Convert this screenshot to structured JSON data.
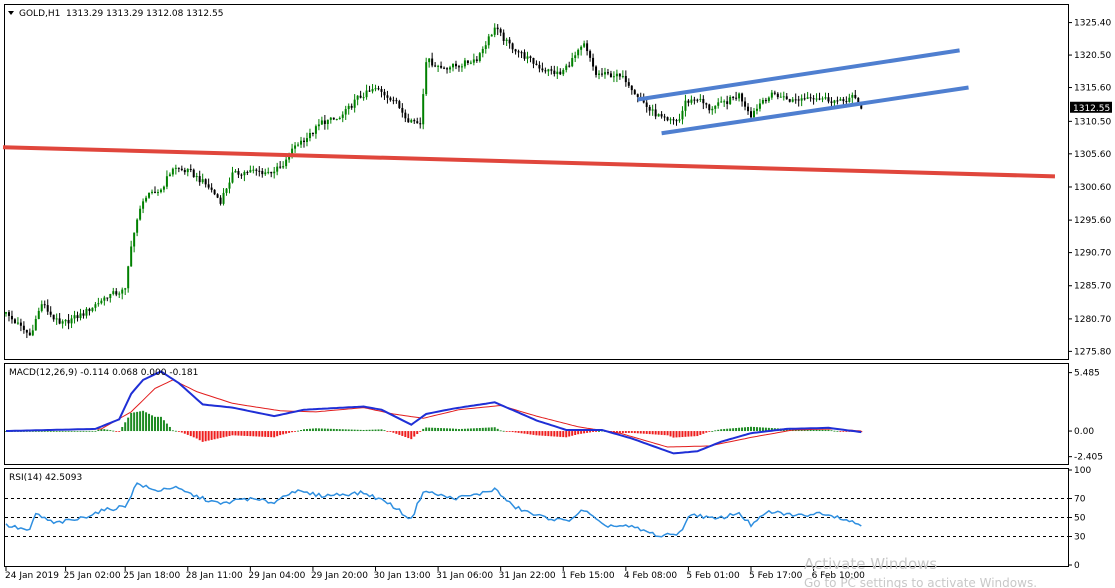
{
  "header": {
    "symbol": "GOLD,H1",
    "ohlc": "1313.29 1313.29 1312.08 1312.55"
  },
  "colors": {
    "bull": "#008000",
    "bear": "#000000",
    "support_line": "#e0463c",
    "channel": "#4f7fd0",
    "macd_main": "#1f2fd6",
    "macd_signal": "#e21c1c",
    "hist_pos": "#1f8b24",
    "hist_neg": "#ee1e1e",
    "rsi_line": "#2f8fe0",
    "current_price_box": "#000000"
  },
  "watermark": {
    "line1": "Activate Windows",
    "line2": "Go to PC settings to activate Windows."
  },
  "chart_data": [
    {
      "type": "candlestick",
      "title": "GOLD,H1",
      "ylim": [
        1274.8,
        1327.9
      ],
      "yticks": [
        "1325.40",
        "1320.50",
        "1315.60",
        "1310.50",
        "1305.60",
        "1300.60",
        "1295.60",
        "1290.70",
        "1285.70",
        "1280.70",
        "1275.80"
      ],
      "current_price": "1312.55",
      "path_points": [
        {
          "i": 0,
          "p": 1281.5
        },
        {
          "i": 8,
          "p": 1278.2
        },
        {
          "i": 12,
          "p": 1283.0
        },
        {
          "i": 18,
          "p": 1279.8
        },
        {
          "i": 26,
          "p": 1281.5
        },
        {
          "i": 34,
          "p": 1284.2
        },
        {
          "i": 40,
          "p": 1285.0
        },
        {
          "i": 42,
          "p": 1292.0
        },
        {
          "i": 46,
          "p": 1298.8
        },
        {
          "i": 52,
          "p": 1300.2
        },
        {
          "i": 56,
          "p": 1303.5
        },
        {
          "i": 62,
          "p": 1302.8
        },
        {
          "i": 68,
          "p": 1300.6
        },
        {
          "i": 72,
          "p": 1298.5
        },
        {
          "i": 76,
          "p": 1302.5
        },
        {
          "i": 82,
          "p": 1303.0
        },
        {
          "i": 88,
          "p": 1302.8
        },
        {
          "i": 93,
          "p": 1303.6
        },
        {
          "i": 97,
          "p": 1306.9
        },
        {
          "i": 102,
          "p": 1308.4
        },
        {
          "i": 106,
          "p": 1310.4
        },
        {
          "i": 112,
          "p": 1310.9
        },
        {
          "i": 118,
          "p": 1314.0
        },
        {
          "i": 124,
          "p": 1315.4
        },
        {
          "i": 130,
          "p": 1313.8
        },
        {
          "i": 135,
          "p": 1310.8
        },
        {
          "i": 139,
          "p": 1310.2
        },
        {
          "i": 141,
          "p": 1319.8
        },
        {
          "i": 146,
          "p": 1318.6
        },
        {
          "i": 152,
          "p": 1318.9
        },
        {
          "i": 158,
          "p": 1320.0
        },
        {
          "i": 164,
          "p": 1324.6
        },
        {
          "i": 168,
          "p": 1322.4
        },
        {
          "i": 174,
          "p": 1320.3
        },
        {
          "i": 180,
          "p": 1318.4
        },
        {
          "i": 186,
          "p": 1317.6
        },
        {
          "i": 190,
          "p": 1319.8
        },
        {
          "i": 194,
          "p": 1322.0
        },
        {
          "i": 198,
          "p": 1317.6
        },
        {
          "i": 204,
          "p": 1317.5
        },
        {
          "i": 208,
          "p": 1316.8
        },
        {
          "i": 212,
          "p": 1314.4
        },
        {
          "i": 216,
          "p": 1312.2
        },
        {
          "i": 222,
          "p": 1310.4
        },
        {
          "i": 226,
          "p": 1310.8
        },
        {
          "i": 228,
          "p": 1313.4
        },
        {
          "i": 232,
          "p": 1314.0
        },
        {
          "i": 236,
          "p": 1312.4
        },
        {
          "i": 242,
          "p": 1313.5
        },
        {
          "i": 246,
          "p": 1314.5
        },
        {
          "i": 250,
          "p": 1311.5
        },
        {
          "i": 254,
          "p": 1313.8
        },
        {
          "i": 258,
          "p": 1314.6
        },
        {
          "i": 264,
          "p": 1313.6
        },
        {
          "i": 270,
          "p": 1314.3
        },
        {
          "i": 276,
          "p": 1313.8
        },
        {
          "i": 280,
          "p": 1313.4
        },
        {
          "i": 284,
          "p": 1314.2
        },
        {
          "i": 287,
          "p": 1312.6
        }
      ]
    },
    {
      "type": "line",
      "title": "MACD(12,26,9) -0.114 0.068 0.000 -0.181",
      "ylim": [
        -3.0,
        6.2
      ],
      "yticks": [
        "5.485",
        "0.00",
        "-2.405"
      ],
      "main_points": [
        {
          "i": 0,
          "v": 0.0
        },
        {
          "i": 30,
          "v": 0.2
        },
        {
          "i": 38,
          "v": 1.1
        },
        {
          "i": 42,
          "v": 3.5
        },
        {
          "i": 46,
          "v": 4.8
        },
        {
          "i": 52,
          "v": 5.6
        },
        {
          "i": 58,
          "v": 4.5
        },
        {
          "i": 66,
          "v": 2.5
        },
        {
          "i": 76,
          "v": 2.2
        },
        {
          "i": 90,
          "v": 1.4
        },
        {
          "i": 100,
          "v": 2.0
        },
        {
          "i": 120,
          "v": 2.3
        },
        {
          "i": 126,
          "v": 2.0
        },
        {
          "i": 136,
          "v": 0.6
        },
        {
          "i": 141,
          "v": 1.6
        },
        {
          "i": 150,
          "v": 2.1
        },
        {
          "i": 164,
          "v": 2.7
        },
        {
          "i": 178,
          "v": 1.0
        },
        {
          "i": 188,
          "v": 0.1
        },
        {
          "i": 200,
          "v": 0.1
        },
        {
          "i": 210,
          "v": -0.7
        },
        {
          "i": 224,
          "v": -2.1
        },
        {
          "i": 232,
          "v": -1.9
        },
        {
          "i": 240,
          "v": -1.0
        },
        {
          "i": 250,
          "v": -0.2
        },
        {
          "i": 262,
          "v": 0.2
        },
        {
          "i": 276,
          "v": 0.3
        },
        {
          "i": 287,
          "v": -0.1
        }
      ],
      "signal_points": [
        {
          "i": 0,
          "v": 0.0
        },
        {
          "i": 32,
          "v": 0.2
        },
        {
          "i": 42,
          "v": 1.8
        },
        {
          "i": 50,
          "v": 4.0
        },
        {
          "i": 56,
          "v": 4.8
        },
        {
          "i": 64,
          "v": 3.7
        },
        {
          "i": 76,
          "v": 2.6
        },
        {
          "i": 92,
          "v": 1.9
        },
        {
          "i": 104,
          "v": 1.8
        },
        {
          "i": 120,
          "v": 2.2
        },
        {
          "i": 130,
          "v": 1.6
        },
        {
          "i": 140,
          "v": 1.2
        },
        {
          "i": 152,
          "v": 2.0
        },
        {
          "i": 166,
          "v": 2.4
        },
        {
          "i": 178,
          "v": 1.4
        },
        {
          "i": 192,
          "v": 0.4
        },
        {
          "i": 206,
          "v": -0.2
        },
        {
          "i": 222,
          "v": -1.5
        },
        {
          "i": 236,
          "v": -1.4
        },
        {
          "i": 250,
          "v": -0.6
        },
        {
          "i": 264,
          "v": 0.1
        },
        {
          "i": 278,
          "v": 0.2
        },
        {
          "i": 287,
          "v": 0.0
        }
      ]
    },
    {
      "type": "line",
      "title": "RSI(14) 42.5093",
      "ylim": [
        0,
        100
      ],
      "yticks": [
        "100",
        "70",
        "50",
        "30",
        "0"
      ],
      "levels": [
        70,
        50,
        30
      ],
      "points": [
        {
          "i": 0,
          "v": 42
        },
        {
          "i": 8,
          "v": 36
        },
        {
          "i": 10,
          "v": 54
        },
        {
          "i": 16,
          "v": 44
        },
        {
          "i": 24,
          "v": 48
        },
        {
          "i": 32,
          "v": 57
        },
        {
          "i": 40,
          "v": 62
        },
        {
          "i": 44,
          "v": 86
        },
        {
          "i": 50,
          "v": 78
        },
        {
          "i": 56,
          "v": 82
        },
        {
          "i": 64,
          "v": 72
        },
        {
          "i": 72,
          "v": 64
        },
        {
          "i": 80,
          "v": 70
        },
        {
          "i": 90,
          "v": 66
        },
        {
          "i": 96,
          "v": 78
        },
        {
          "i": 106,
          "v": 73
        },
        {
          "i": 120,
          "v": 76
        },
        {
          "i": 128,
          "v": 66
        },
        {
          "i": 136,
          "v": 48
        },
        {
          "i": 140,
          "v": 78
        },
        {
          "i": 150,
          "v": 70
        },
        {
          "i": 158,
          "v": 74
        },
        {
          "i": 164,
          "v": 80
        },
        {
          "i": 170,
          "v": 62
        },
        {
          "i": 178,
          "v": 52
        },
        {
          "i": 188,
          "v": 46
        },
        {
          "i": 194,
          "v": 58
        },
        {
          "i": 200,
          "v": 42
        },
        {
          "i": 210,
          "v": 40
        },
        {
          "i": 220,
          "v": 30
        },
        {
          "i": 226,
          "v": 34
        },
        {
          "i": 230,
          "v": 54
        },
        {
          "i": 238,
          "v": 48
        },
        {
          "i": 246,
          "v": 55
        },
        {
          "i": 250,
          "v": 42
        },
        {
          "i": 256,
          "v": 56
        },
        {
          "i": 266,
          "v": 52
        },
        {
          "i": 274,
          "v": 55
        },
        {
          "i": 280,
          "v": 50
        },
        {
          "i": 287,
          "v": 42
        }
      ]
    }
  ],
  "drawings": {
    "support_line": {
      "from": {
        "i": -1,
        "p": 1306.6
      },
      "to": {
        "i": 352,
        "p": 1302.2
      }
    },
    "channel_upper": {
      "from": {
        "i": 212,
        "p": 1313.8
      },
      "to": {
        "i": 320,
        "p": 1321.2
      }
    },
    "channel_lower": {
      "from": {
        "i": 220,
        "p": 1308.7
      },
      "to": {
        "i": 323,
        "p": 1315.6
      }
    }
  },
  "x_axis": {
    "labels": [
      {
        "i": 0,
        "text": "24 Jan 2019"
      },
      {
        "i": 20,
        "text": "25 Jan 02:00"
      },
      {
        "i": 40,
        "text": "25 Jan 18:00"
      },
      {
        "i": 61,
        "text": "28 Jan 11:00"
      },
      {
        "i": 82,
        "text": "29 Jan 04:00"
      },
      {
        "i": 103,
        "text": "29 Jan 20:00"
      },
      {
        "i": 124,
        "text": "30 Jan 13:00"
      },
      {
        "i": 145,
        "text": "31 Jan 06:00"
      },
      {
        "i": 166,
        "text": "31 Jan 22:00"
      },
      {
        "i": 187,
        "text": "1 Feb 15:00"
      },
      {
        "i": 208,
        "text": "4 Feb 08:00"
      },
      {
        "i": 229,
        "text": "5 Feb 01:00"
      },
      {
        "i": 250,
        "text": "5 Feb 17:00"
      },
      {
        "i": 271,
        "text": "6 Feb 10:00"
      }
    ]
  }
}
